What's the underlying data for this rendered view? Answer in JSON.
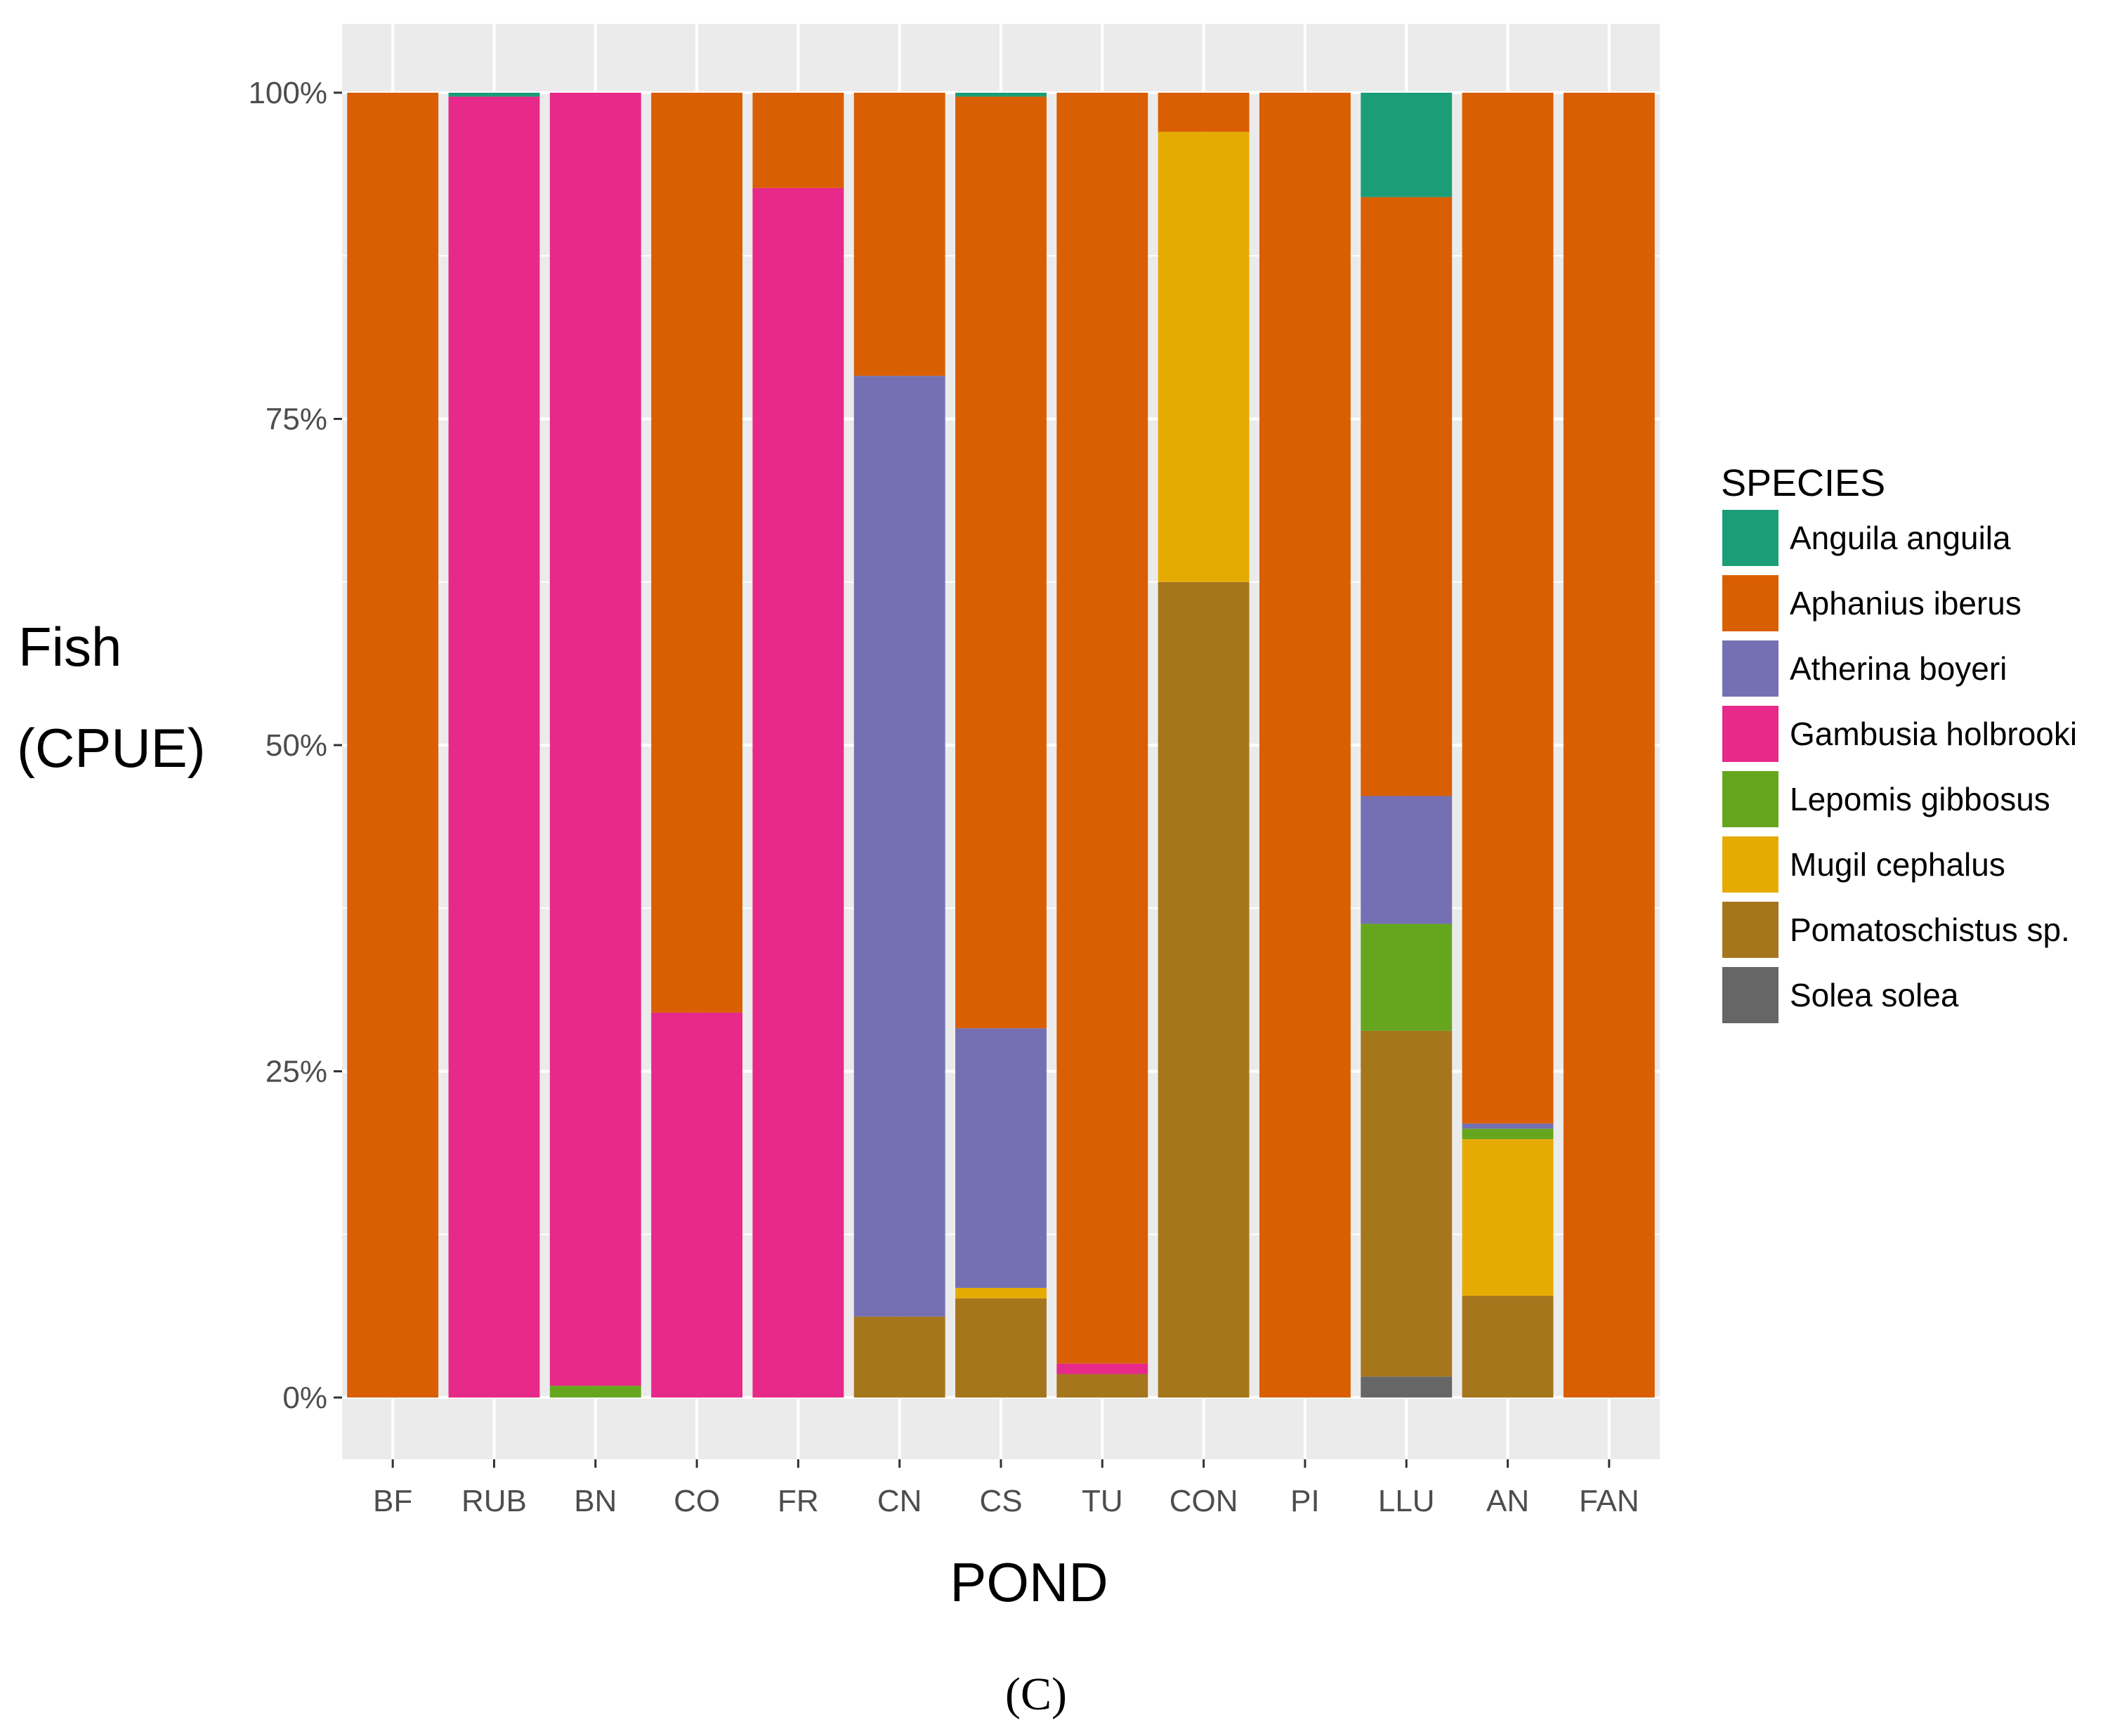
{
  "chart_data": {
    "type": "bar",
    "stacked": true,
    "normalized": true,
    "categories": [
      "BF",
      "RUB",
      "BN",
      "CO",
      "FR",
      "CN",
      "CS",
      "TU",
      "CON",
      "PI",
      "LLU",
      "AN",
      "FAN"
    ],
    "xlabel": "POND",
    "ylabel_lines": [
      "Fish",
      "(CPUE)"
    ],
    "ylim": [
      0,
      100
    ],
    "yticks": [
      "0%",
      "25%",
      "50%",
      "75%",
      "100%"
    ],
    "ytick_values": [
      0,
      25,
      50,
      75,
      100
    ],
    "grid": true,
    "legend": {
      "title": "SPECIES",
      "position": "right"
    },
    "panel_label": "(C)",
    "series": [
      {
        "name": "Anguila anguila",
        "color": "#1b9e77",
        "values": [
          0,
          0.3,
          0,
          0,
          0,
          0,
          0.3,
          0,
          0,
          0,
          8,
          0,
          0
        ]
      },
      {
        "name": "Aphanius iberus",
        "color": "#d95f02",
        "values": [
          100,
          0,
          0,
          70.5,
          7.3,
          21.7,
          71.4,
          97.4,
          3,
          100,
          45.9,
          79,
          100
        ]
      },
      {
        "name": "Atherina boyeri",
        "color": "#7570b3",
        "values": [
          0,
          0,
          0,
          0,
          0,
          72.1,
          19.9,
          0,
          0,
          0,
          9.8,
          0.4,
          0
        ]
      },
      {
        "name": "Gambusia holbrooki",
        "color": "#e7298a",
        "values": [
          0,
          99.7,
          99.1,
          29.5,
          92.7,
          0,
          0,
          0.8,
          0,
          0,
          0,
          0,
          0
        ]
      },
      {
        "name": "Lepomis gibbosus",
        "color": "#66a61e",
        "values": [
          0,
          0,
          0.9,
          0,
          0,
          0,
          0,
          0,
          0,
          0,
          8.2,
          0.8,
          0
        ]
      },
      {
        "name": "Mugil cephalus",
        "color": "#e6ab02",
        "values": [
          0,
          0,
          0,
          0,
          0,
          0,
          0.8,
          0,
          34.5,
          0,
          0,
          12,
          0
        ]
      },
      {
        "name": "Pomatoschistus sp.",
        "color": "#a6761d",
        "values": [
          0,
          0,
          0,
          0,
          0,
          6.2,
          7.6,
          1.8,
          62.5,
          0,
          26.5,
          7.8,
          0
        ]
      },
      {
        "name": "Solea solea",
        "color": "#666666",
        "values": [
          0,
          0,
          0,
          0,
          0,
          0,
          0,
          0,
          0,
          0,
          1.6,
          0,
          0
        ]
      }
    ]
  }
}
